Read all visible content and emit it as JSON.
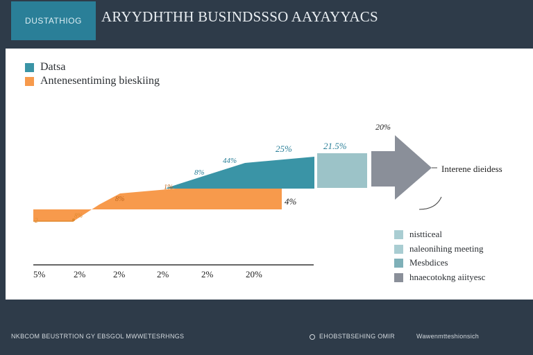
{
  "header": {
    "brand": "DUSTATHIOG",
    "title": "ARYYDHTHH BUSINDSSSO AAYAYYACS"
  },
  "colors": {
    "teal": "#3a94a6",
    "orange": "#f79a4c",
    "light_teal": "#9cc3c8",
    "gray": "#8a8f99",
    "header_bg": "#2e3b49"
  },
  "chart_data": {
    "type": "area",
    "x_tick_labels": [
      "5%",
      "2%",
      "2%",
      "2%",
      "2%",
      "20%"
    ],
    "legend_top": [
      {
        "label": "Datsa",
        "color": "#3a94a6"
      },
      {
        "label": "Antenesentiming bieskiing",
        "color": "#f79a4c"
      }
    ],
    "data_labels": [
      "2",
      "8%",
      "8%",
      "1%",
      "8%",
      "44%",
      "25%",
      "4%",
      "21.5%",
      "20%"
    ],
    "arrow_label": "Interene dieidess",
    "legend_right": [
      {
        "label": "nistticeal",
        "color": "#a9cdd2"
      },
      {
        "label": "naleonihing meeting",
        "color": "#a9cdd2"
      },
      {
        "label": "Mesbdices",
        "color": "#7fb0b8"
      },
      {
        "label": "hnaecotokng aiityesc",
        "color": "#8a8f99"
      }
    ]
  },
  "footer": {
    "left": "NKBCOM BEUSTRTION GY EBSGOL MWWETESRHNGS",
    "middle": "EHOBSTBSEHING OMIR",
    "right": "Wawenmtteshionsich"
  }
}
